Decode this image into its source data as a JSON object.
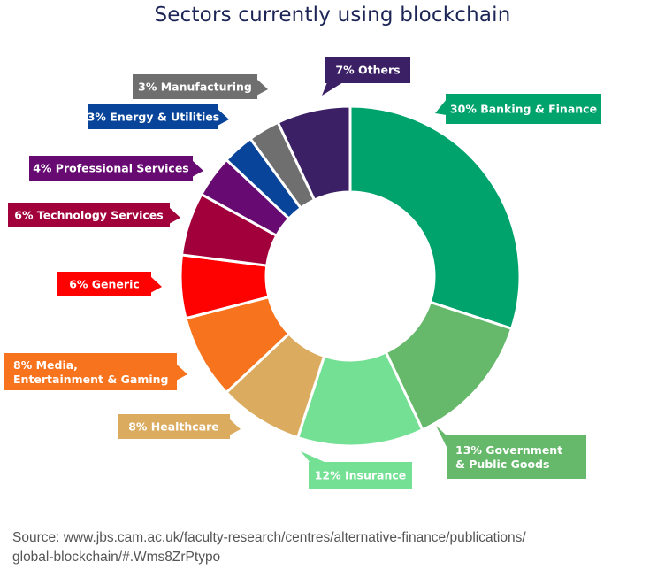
{
  "chart_data": {
    "type": "pie",
    "title": "Sectors currently using blockchain",
    "slices": [
      {
        "label": "30% Banking & Finance",
        "value": 30,
        "color": "#00a36b"
      },
      {
        "label": "13% Government & Public Goods",
        "value": 13,
        "color": "#66b86a"
      },
      {
        "label": "12% Insurance",
        "value": 12,
        "color": "#74e094"
      },
      {
        "label": "8% Healthcare",
        "value": 8,
        "color": "#dbab60"
      },
      {
        "label": "8% Media, Entertainment & Gaming",
        "value": 8,
        "color": "#f7731d"
      },
      {
        "label": "6% Generic",
        "value": 6,
        "color": "#fe0202"
      },
      {
        "label": "6% Technology Services",
        "value": 6,
        "color": "#a2003a"
      },
      {
        "label": "4% Professional Services",
        "value": 4,
        "color": "#670b72"
      },
      {
        "label": "3% Energy & Utilities",
        "value": 3,
        "color": "#08459a"
      },
      {
        "label": "3% Manufacturing",
        "value": 3,
        "color": "#6f6f6f"
      },
      {
        "label": "7% Others",
        "value": 7,
        "color": "#3b2066"
      }
    ]
  },
  "source": {
    "line1": "Source: www.jbs.cam.ac.uk/faculty-research/centres/alternative-finance/publications/",
    "line2": "global-blockchain/#.Wms8ZrPtypo"
  }
}
